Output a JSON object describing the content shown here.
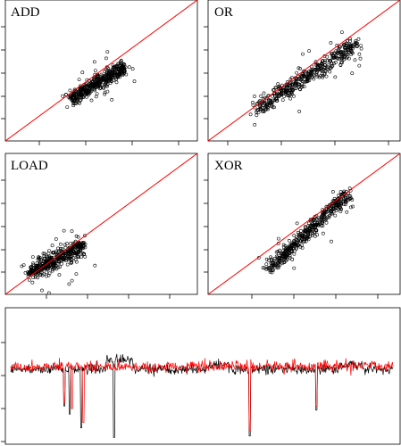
{
  "chart_data": [
    {
      "type": "scatter",
      "title": "ADD",
      "xlim": [
        0,
        1
      ],
      "ylim": [
        0,
        1
      ],
      "grid": false,
      "reference_line": {
        "type": "identity",
        "color": "#ff0000"
      },
      "point_style": "open-circle",
      "series": [
        {
          "center": [
            [
              0.34,
              0.3
            ],
            [
              0.62,
              0.52
            ]
          ],
          "spread": 0.025,
          "n": 450
        }
      ]
    },
    {
      "type": "scatter",
      "title": "OR",
      "xlim": [
        0,
        1
      ],
      "ylim": [
        0,
        1
      ],
      "grid": false,
      "reference_line": {
        "type": "identity",
        "color": "#ff0000"
      },
      "point_style": "open-circle",
      "series": [
        {
          "center": [
            [
              0.25,
              0.22
            ],
            [
              0.77,
              0.69
            ]
          ],
          "spread": 0.03,
          "n": 450
        }
      ]
    },
    {
      "type": "scatter",
      "title": "LOAD",
      "xlim": [
        0,
        1
      ],
      "ylim": [
        0,
        1
      ],
      "grid": false,
      "reference_line": {
        "type": "identity",
        "color": "#ff0000"
      },
      "point_style": "open-circle",
      "series": [
        {
          "center": [
            [
              0.13,
              0.15
            ],
            [
              0.4,
              0.34
            ]
          ],
          "spread": 0.03,
          "n": 450
        }
      ]
    },
    {
      "type": "scatter",
      "title": "XOR",
      "xlim": [
        0,
        1
      ],
      "ylim": [
        0,
        1
      ],
      "grid": false,
      "reference_line": {
        "type": "identity",
        "color": "#ff0000"
      },
      "point_style": "open-circle",
      "series": [
        {
          "center": [
            [
              0.32,
              0.18
            ],
            [
              0.73,
              0.72
            ]
          ],
          "spread": 0.025,
          "n": 450
        }
      ]
    },
    {
      "type": "line",
      "title": "",
      "xlabel": "",
      "ylabel": "",
      "ylim": [
        0,
        1
      ],
      "grid": false,
      "series": [
        {
          "color": "#000000",
          "baseline": 0.55,
          "noise": 0.03,
          "raised_segments": [
            [
              0.25,
              0.32,
              0.07
            ],
            [
              0.52,
              0.57,
              0.03
            ],
            [
              0.86,
              0.92,
              0.03
            ]
          ],
          "dips": [
            [
              0.14,
              0.28
            ],
            [
              0.155,
              0.22
            ],
            [
              0.185,
              0.12
            ],
            [
              0.27,
              0.05
            ],
            [
              0.625,
              0.06
            ],
            [
              0.8,
              0.25
            ]
          ]
        },
        {
          "color": "#ff0000",
          "baseline": 0.57,
          "noise": 0.035,
          "raised_segments": [],
          "dips": [
            [
              0.14,
              0.3
            ],
            [
              0.16,
              0.26
            ],
            [
              0.19,
              0.16
            ],
            [
              0.625,
              0.1
            ],
            [
              0.8,
              0.28
            ]
          ]
        }
      ]
    }
  ]
}
